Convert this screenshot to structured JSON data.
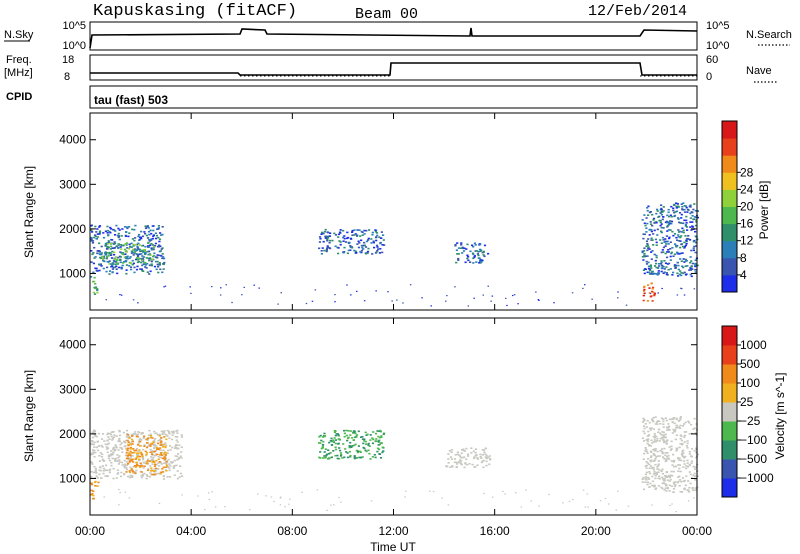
{
  "header": {
    "station": "Kapuskasing (fitACF)",
    "beam": "Beam 00",
    "date": "12/Feb/2014"
  },
  "top_panels": {
    "nsky": {
      "label": "N.Sky",
      "left_ticks": [
        "10^5",
        "10^0"
      ],
      "right_ticks": [
        "10^5",
        "10^0"
      ],
      "right_label": "N.Search"
    },
    "freq": {
      "label_line1": "Freq.",
      "label_line2": "[MHz]",
      "left_ticks": [
        "18",
        "8"
      ],
      "right_ticks": [
        "60",
        "0"
      ],
      "right_label": "Nave"
    },
    "cpid": {
      "label": "CPID",
      "program": "tau (fast) 503"
    }
  },
  "chart_data": [
    {
      "type": "heatmap",
      "name": "power",
      "xlabel": "Time UT",
      "ylabel": "Slant Range [km]",
      "x_ticks": [
        "00:00",
        "04:00",
        "08:00",
        "12:00",
        "16:00",
        "20:00",
        "00:00"
      ],
      "y_ticks": [
        1000,
        2000,
        3000,
        4000
      ],
      "xlim_hours": [
        0,
        24
      ],
      "ylim_km": [
        180,
        4600
      ],
      "colorbar": {
        "label": "Power [dB]",
        "ticks": [
          4,
          8,
          12,
          16,
          20,
          24,
          28
        ],
        "colors": [
          "#1e2de8",
          "#3a55b0",
          "#2a7fb8",
          "#2e8f6a",
          "#4db84d",
          "#8fd13b",
          "#f0c020",
          "#f08a1a",
          "#e8401a",
          "#d81818"
        ]
      },
      "regions": [
        {
          "t": [
            0.0,
            2.9
          ],
          "r": [
            1000,
            2100
          ],
          "level": "low"
        },
        {
          "t": [
            0.4,
            2.5
          ],
          "r": [
            1200,
            1700
          ],
          "level": "mid"
        },
        {
          "t": [
            0.0,
            0.3
          ],
          "r": [
            550,
            950
          ],
          "level": "mid"
        },
        {
          "t": [
            9.0,
            11.6
          ],
          "r": [
            1450,
            2000
          ],
          "level": "low"
        },
        {
          "t": [
            14.4,
            15.7
          ],
          "r": [
            1250,
            1700
          ],
          "level": "low"
        },
        {
          "t": [
            21.8,
            24.0
          ],
          "r": [
            950,
            2600
          ],
          "level": "low"
        },
        {
          "t": [
            21.8,
            22.3
          ],
          "r": [
            400,
            800
          ],
          "level": "high"
        }
      ]
    },
    {
      "type": "heatmap",
      "name": "velocity",
      "xlabel": "Time UT",
      "ylabel": "Slant Range [km]",
      "x_ticks": [
        "00:00",
        "04:00",
        "08:00",
        "12:00",
        "16:00",
        "20:00",
        "00:00"
      ],
      "y_ticks": [
        1000,
        2000,
        3000,
        4000
      ],
      "xlim_hours": [
        0,
        24
      ],
      "ylim_km": [
        180,
        4600
      ],
      "colorbar": {
        "label": "Velocity [m s^-1]",
        "ticks": [
          "1000",
          "500",
          "100",
          "25",
          "−25",
          "−100",
          "−500",
          "−1000"
        ],
        "colors": [
          "#1e2de8",
          "#3a55b0",
          "#2e8f6a",
          "#4db84d",
          "#c8c8c0",
          "#f0b020",
          "#f08a1a",
          "#e8401a",
          "#d81818"
        ]
      },
      "regions": [
        {
          "t": [
            0.0,
            3.6
          ],
          "r": [
            1000,
            2100
          ],
          "level": "ground"
        },
        {
          "t": [
            1.4,
            3.0
          ],
          "r": [
            1100,
            2000
          ],
          "level": "away"
        },
        {
          "t": [
            0.0,
            0.3
          ],
          "r": [
            550,
            950
          ],
          "level": "away"
        },
        {
          "t": [
            9.0,
            11.6
          ],
          "r": [
            1450,
            2100
          ],
          "level": "toward"
        },
        {
          "t": [
            14.0,
            15.8
          ],
          "r": [
            1250,
            1700
          ],
          "level": "ground"
        },
        {
          "t": [
            21.8,
            24.0
          ],
          "r": [
            700,
            2400
          ],
          "level": "ground"
        }
      ]
    }
  ],
  "colors": {
    "ground_scatter": "#c8c8c0"
  }
}
